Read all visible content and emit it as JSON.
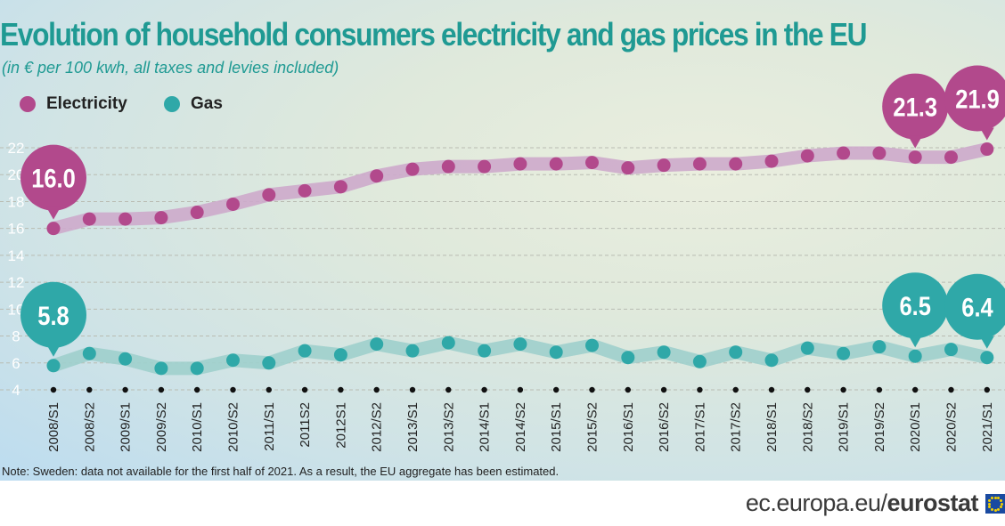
{
  "title": "Evolution of household consumers electricity and gas prices in the EU",
  "subtitle": "(in € per 100 kwh, all taxes and levies included)",
  "note": "Note: Sweden: data not available for the first half of 2021. As a result, the EU aggregate has been estimated.",
  "footer": {
    "domain": "ec.europa.eu/",
    "brand": "eurostat"
  },
  "colors": {
    "electricity": "#b2498c",
    "electricity_band": "#cdaacb",
    "gas": "#2fa8a8",
    "gas_band": "#9fcfcc"
  },
  "chart_data": {
    "type": "line",
    "categories": [
      "2008/S1",
      "2008/S2",
      "2009/S1",
      "2009/S2",
      "2010/S1",
      "2010/S2",
      "2011/S1",
      "2011S2",
      "2012S1",
      "2012/S2",
      "2013/S1",
      "2013/S2",
      "2014/S1",
      "2014/S2",
      "2015/S1",
      "2015/S2",
      "2016/S1",
      "2016/S2",
      "2017/S1",
      "2017/S2",
      "2018/S1",
      "2018/S2",
      "2019/S1",
      "2019/S2",
      "2020/S1",
      "2020/S2",
      "2021/S1"
    ],
    "yticks": [
      "4",
      "6",
      "8",
      "10",
      "12",
      "14",
      "16",
      "18",
      "20",
      "22"
    ],
    "ylim": [
      4,
      22
    ],
    "grid": true,
    "legend": "top-left",
    "series": [
      {
        "name": "Electricity",
        "values": [
          16.0,
          16.7,
          16.7,
          16.8,
          17.2,
          17.8,
          18.5,
          18.8,
          19.1,
          19.9,
          20.4,
          20.6,
          20.6,
          20.8,
          20.8,
          20.9,
          20.5,
          20.7,
          20.8,
          20.8,
          21.0,
          21.4,
          21.6,
          21.6,
          21.3,
          21.3,
          21.9
        ]
      },
      {
        "name": "Gas",
        "values": [
          5.8,
          6.7,
          6.3,
          5.6,
          5.6,
          6.2,
          6.0,
          6.9,
          6.6,
          7.4,
          6.9,
          7.5,
          6.9,
          7.4,
          6.8,
          7.3,
          6.4,
          6.8,
          6.1,
          6.8,
          6.2,
          7.1,
          6.7,
          7.2,
          6.5,
          7.0,
          6.4
        ]
      }
    ],
    "callouts": [
      {
        "series": 0,
        "index": 0,
        "label": "16.0"
      },
      {
        "series": 0,
        "index": 24,
        "label": "21.3"
      },
      {
        "series": 0,
        "index": 26,
        "label": "21.9"
      },
      {
        "series": 1,
        "index": 0,
        "label": "5.8"
      },
      {
        "series": 1,
        "index": 24,
        "label": "6.5"
      },
      {
        "series": 1,
        "index": 26,
        "label": "6.4"
      }
    ]
  }
}
